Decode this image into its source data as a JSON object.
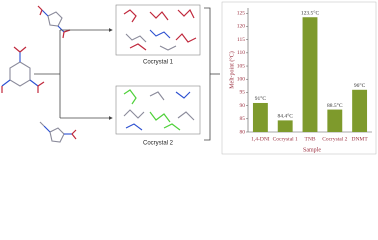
{
  "scheme": {
    "products": [
      "Cocrystal 1",
      "Cocrystal 2"
    ]
  },
  "chart_data": {
    "type": "bar",
    "y_label": "Melt-point (°C)",
    "x_label": "Sample",
    "categories": [
      "1,4-DNI",
      "Cocrystal 1",
      "TNB",
      "Cocrystal 2",
      "DNMT"
    ],
    "values": [
      91,
      84.4,
      123.5,
      88.5,
      96
    ],
    "value_labels": [
      "91°C",
      "84.4°C",
      "123.5°C",
      "88.5°C",
      "96°C"
    ],
    "color": "#7e9a2c",
    "ylim": [
      80,
      127
    ],
    "yticks": [
      80,
      85,
      90,
      95,
      100,
      105,
      110,
      115,
      120,
      125
    ]
  }
}
